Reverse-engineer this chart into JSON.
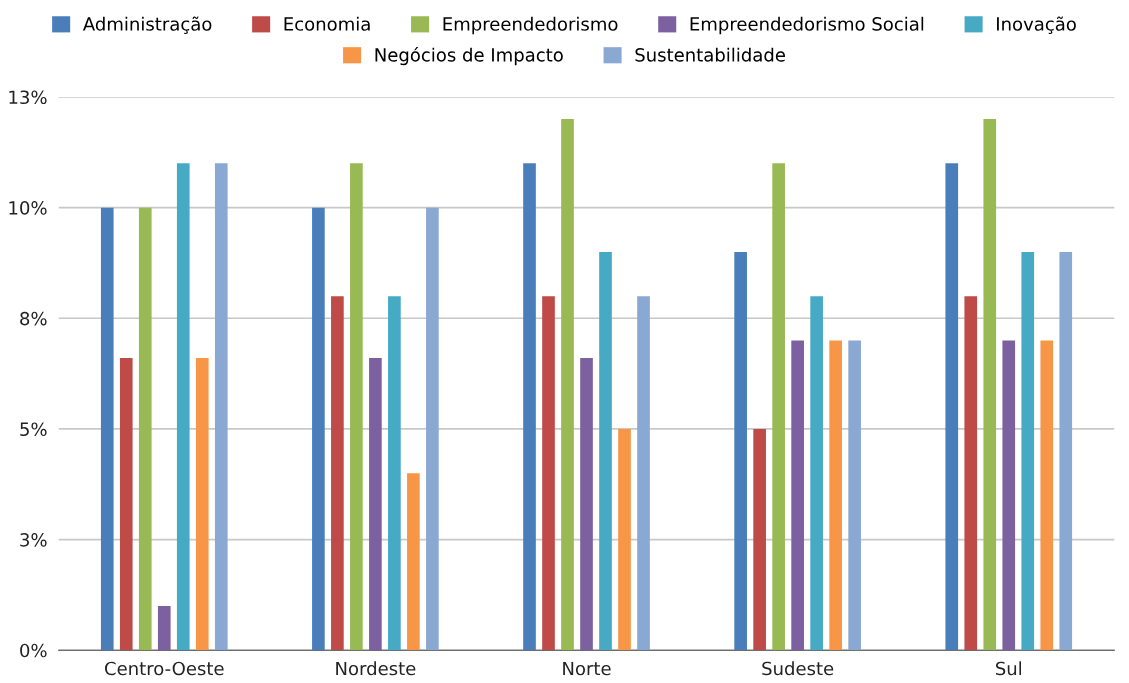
{
  "chart_data": {
    "type": "bar",
    "categories": [
      "Centro-Oeste",
      "Nordeste",
      "Norte",
      "Sudeste",
      "Sul"
    ],
    "series": [
      {
        "name": "Administração",
        "color": "#4a7ebb",
        "values": [
          10,
          10,
          11,
          9,
          11
        ]
      },
      {
        "name": "Economia",
        "color": "#be4b48",
        "values": [
          6.6,
          8,
          8,
          5,
          8
        ]
      },
      {
        "name": "Empreendedorismo",
        "color": "#98b954",
        "values": [
          10,
          11,
          12,
          11,
          12
        ]
      },
      {
        "name": "Empreendedorismo Social",
        "color": "#7d60a0",
        "values": [
          1,
          6.6,
          6.6,
          7,
          7
        ]
      },
      {
        "name": "Inovação",
        "color": "#46aac5",
        "values": [
          11,
          8,
          9,
          8,
          9
        ]
      },
      {
        "name": "Negócios de Impacto",
        "color": "#f79646",
        "values": [
          6.6,
          4,
          5,
          7,
          7
        ]
      },
      {
        "name": "Sustentabilidade",
        "color": "#8aa9d2",
        "values": [
          11,
          10,
          8,
          7,
          9
        ]
      }
    ],
    "ylim": [
      0,
      12.5
    ],
    "yticks": [
      {
        "value": 0,
        "label": "0%"
      },
      {
        "value": 2.5,
        "label": "3%"
      },
      {
        "value": 5,
        "label": "5%"
      },
      {
        "value": 7.5,
        "label": "8%"
      },
      {
        "value": 10,
        "label": "10%"
      },
      {
        "value": 12.5,
        "label": "13%"
      }
    ],
    "grid": "y",
    "legend": "top"
  }
}
